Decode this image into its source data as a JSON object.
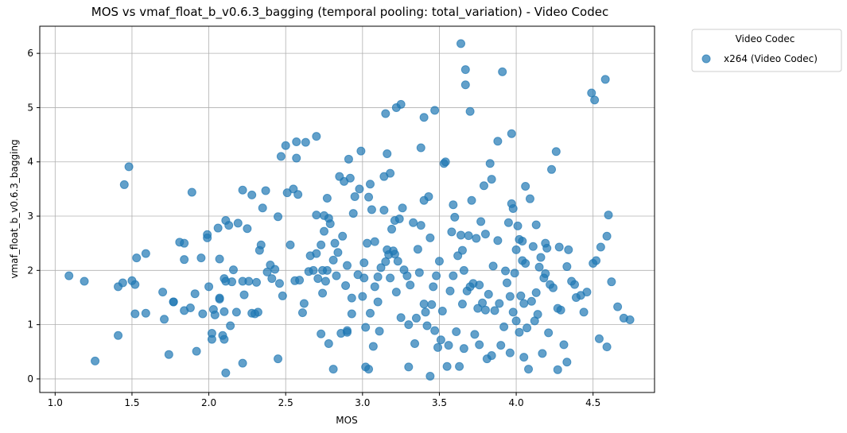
{
  "chart_data": {
    "type": "scatter",
    "title": "MOS vs vmaf_float_b_v0.6.3_bagging (temporal pooling: total_variation) - Video Codec",
    "xlabel": "MOS",
    "ylabel": "vmaf_float_b_v0.6.3_bagging",
    "xlim": [
      0.9,
      4.9
    ],
    "ylim": [
      -0.25,
      6.5
    ],
    "xticks": [
      "1.0",
      "1.5",
      "2.0",
      "2.5",
      "3.0",
      "3.5",
      "4.0",
      "4.5"
    ],
    "yticks": [
      "0",
      "1",
      "2",
      "3",
      "4",
      "5",
      "6"
    ],
    "grid": true,
    "legend": {
      "title": "Video Codec",
      "placement": "outside-top-right"
    },
    "point_color": "#1f77b4",
    "point_alpha": 0.7,
    "series": [
      {
        "name": "x264 (Video Codec)",
        "points": [
          [
            1.09,
            1.9
          ],
          [
            1.19,
            1.8
          ],
          [
            1.26,
            0.33
          ],
          [
            1.41,
            0.8
          ],
          [
            1.41,
            1.7
          ],
          [
            1.44,
            1.77
          ],
          [
            1.45,
            3.58
          ],
          [
            1.48,
            3.91
          ],
          [
            1.5,
            1.81
          ],
          [
            1.52,
            1.74
          ],
          [
            1.52,
            1.2
          ],
          [
            1.53,
            2.23
          ],
          [
            1.59,
            2.31
          ],
          [
            1.59,
            1.21
          ],
          [
            1.7,
            1.6
          ],
          [
            1.71,
            1.1
          ],
          [
            1.74,
            0.45
          ],
          [
            1.77,
            1.42
          ],
          [
            1.77,
            1.42
          ],
          [
            1.81,
            2.52
          ],
          [
            1.84,
            2.5
          ],
          [
            1.84,
            1.26
          ],
          [
            1.84,
            2.2
          ],
          [
            1.88,
            1.31
          ],
          [
            1.89,
            3.44
          ],
          [
            1.91,
            1.57
          ],
          [
            1.92,
            0.51
          ],
          [
            1.95,
            2.23
          ],
          [
            1.96,
            1.2
          ],
          [
            1.99,
            2.6
          ],
          [
            1.99,
            2.66
          ],
          [
            2.0,
            1.7
          ],
          [
            2.02,
            0.73
          ],
          [
            2.02,
            0.84
          ],
          [
            2.03,
            1.28
          ],
          [
            2.04,
            1.18
          ],
          [
            2.06,
            2.78
          ],
          [
            2.07,
            2.21
          ],
          [
            2.07,
            1.49
          ],
          [
            2.07,
            1.47
          ],
          [
            2.09,
            0.8
          ],
          [
            2.1,
            1.24
          ],
          [
            2.1,
            1.85
          ],
          [
            2.1,
            0.73
          ],
          [
            2.11,
            2.92
          ],
          [
            2.11,
            0.11
          ],
          [
            2.11,
            1.8
          ],
          [
            2.13,
            2.83
          ],
          [
            2.14,
            0.98
          ],
          [
            2.16,
            2.01
          ],
          [
            2.15,
            1.79
          ],
          [
            2.18,
            1.23
          ],
          [
            2.19,
            2.87
          ],
          [
            2.22,
            3.48
          ],
          [
            2.22,
            1.8
          ],
          [
            2.22,
            0.29
          ],
          [
            2.23,
            1.55
          ],
          [
            2.25,
            2.77
          ],
          [
            2.26,
            1.8
          ],
          [
            2.28,
            1.21
          ],
          [
            2.28,
            3.39
          ],
          [
            2.3,
            1.2
          ],
          [
            2.31,
            1.78
          ],
          [
            2.32,
            1.23
          ],
          [
            2.33,
            2.37
          ],
          [
            2.34,
            2.47
          ],
          [
            2.35,
            3.15
          ],
          [
            2.37,
            3.47
          ],
          [
            2.38,
            1.97
          ],
          [
            2.4,
            2.1
          ],
          [
            2.41,
            1.85
          ],
          [
            2.43,
            2.02
          ],
          [
            2.45,
            0.37
          ],
          [
            2.45,
            2.99
          ],
          [
            2.46,
            1.76
          ],
          [
            2.47,
            4.1
          ],
          [
            2.48,
            1.53
          ],
          [
            2.5,
            4.3
          ],
          [
            2.51,
            3.43
          ],
          [
            2.53,
            2.47
          ],
          [
            2.55,
            3.5
          ],
          [
            2.56,
            1.81
          ],
          [
            2.57,
            4.37
          ],
          [
            2.57,
            4.07
          ],
          [
            2.58,
            3.4
          ],
          [
            2.59,
            1.82
          ],
          [
            2.61,
            1.22
          ],
          [
            2.62,
            1.39
          ],
          [
            2.63,
            4.36
          ],
          [
            2.65,
            1.98
          ],
          [
            2.66,
            2.27
          ],
          [
            2.68,
            2.0
          ],
          [
            2.7,
            4.47
          ],
          [
            2.7,
            3.02
          ],
          [
            2.7,
            2.31
          ],
          [
            2.71,
            1.85
          ],
          [
            2.73,
            0.83
          ],
          [
            2.73,
            2.47
          ],
          [
            2.74,
            1.58
          ],
          [
            2.74,
            2.0
          ],
          [
            2.75,
            2.72
          ],
          [
            2.75,
            3.01
          ],
          [
            2.76,
            1.8
          ],
          [
            2.77,
            2.0
          ],
          [
            2.77,
            3.33
          ],
          [
            2.78,
            2.96
          ],
          [
            2.78,
            0.65
          ],
          [
            2.79,
            2.86
          ],
          [
            2.81,
            2.19
          ],
          [
            2.81,
            0.18
          ],
          [
            2.82,
            2.5
          ],
          [
            2.83,
            1.9
          ],
          [
            2.84,
            2.33
          ],
          [
            2.85,
            3.73
          ],
          [
            2.86,
            0.84
          ],
          [
            2.87,
            2.63
          ],
          [
            2.88,
            3.64
          ],
          [
            2.89,
            1.72
          ],
          [
            2.9,
            2.09
          ],
          [
            2.9,
            0.89
          ],
          [
            2.9,
            0.86
          ],
          [
            2.91,
            4.05
          ],
          [
            2.92,
            3.7
          ],
          [
            2.93,
            1.49
          ],
          [
            2.93,
            1.2
          ],
          [
            2.94,
            3.05
          ],
          [
            2.95,
            3.36
          ],
          [
            2.97,
            1.92
          ],
          [
            2.98,
            3.5
          ],
          [
            2.99,
            4.2
          ],
          [
            3.0,
            1.52
          ],
          [
            3.01,
            2.14
          ],
          [
            3.01,
            1.86
          ],
          [
            3.02,
            0.95
          ],
          [
            3.02,
            0.22
          ],
          [
            3.03,
            2.5
          ],
          [
            3.04,
            0.18
          ],
          [
            3.04,
            3.35
          ],
          [
            3.05,
            3.59
          ],
          [
            3.05,
            1.21
          ],
          [
            3.06,
            3.12
          ],
          [
            3.07,
            0.6
          ],
          [
            3.08,
            1.7
          ],
          [
            3.08,
            2.53
          ],
          [
            3.1,
            1.88
          ],
          [
            3.1,
            1.42
          ],
          [
            3.11,
            0.88
          ],
          [
            3.12,
            2.05
          ],
          [
            3.14,
            3.11
          ],
          [
            3.14,
            3.73
          ],
          [
            3.15,
            2.16
          ],
          [
            3.15,
            4.89
          ],
          [
            3.16,
            4.15
          ],
          [
            3.16,
            2.38
          ],
          [
            3.17,
            2.29
          ],
          [
            3.18,
            3.79
          ],
          [
            3.18,
            1.86
          ],
          [
            3.19,
            2.76
          ],
          [
            3.2,
            2.36
          ],
          [
            3.21,
            2.92
          ],
          [
            3.21,
            2.3
          ],
          [
            3.22,
            5.0
          ],
          [
            3.22,
            1.6
          ],
          [
            3.23,
            2.17
          ],
          [
            3.24,
            2.95
          ],
          [
            3.25,
            1.13
          ],
          [
            3.25,
            5.06
          ],
          [
            3.26,
            3.15
          ],
          [
            3.27,
            2.01
          ],
          [
            3.29,
            1.9
          ],
          [
            3.3,
            1.0
          ],
          [
            3.3,
            0.22
          ],
          [
            3.31,
            1.73
          ],
          [
            3.33,
            2.88
          ],
          [
            3.34,
            0.65
          ],
          [
            3.35,
            1.12
          ],
          [
            3.36,
            2.39
          ],
          [
            3.37,
            1.96
          ],
          [
            3.38,
            4.26
          ],
          [
            3.38,
            2.83
          ],
          [
            3.4,
            3.29
          ],
          [
            3.4,
            1.38
          ],
          [
            3.4,
            4.82
          ],
          [
            3.41,
            1.23
          ],
          [
            3.42,
            0.98
          ],
          [
            3.43,
            3.36
          ],
          [
            3.44,
            2.6
          ],
          [
            3.44,
            0.05
          ],
          [
            3.45,
            1.37
          ],
          [
            3.46,
            1.7
          ],
          [
            3.47,
            4.95
          ],
          [
            3.47,
            0.89
          ],
          [
            3.48,
            1.9
          ],
          [
            3.49,
            0.58
          ],
          [
            3.5,
            2.17
          ],
          [
            3.51,
            0.72
          ],
          [
            3.52,
            1.25
          ],
          [
            3.53,
            3.97
          ],
          [
            3.54,
            4.0
          ],
          [
            3.55,
            0.23
          ],
          [
            3.56,
            0.62
          ],
          [
            3.57,
            1.62
          ],
          [
            3.58,
            2.71
          ],
          [
            3.59,
            1.9
          ],
          [
            3.59,
            3.21
          ],
          [
            3.6,
            2.98
          ],
          [
            3.61,
            0.87
          ],
          [
            3.62,
            2.27
          ],
          [
            3.63,
            0.23
          ],
          [
            3.64,
            6.18
          ],
          [
            3.64,
            2.65
          ],
          [
            3.65,
            1.38
          ],
          [
            3.65,
            2.37
          ],
          [
            3.66,
            2.0
          ],
          [
            3.66,
            0.56
          ],
          [
            3.67,
            5.42
          ],
          [
            3.67,
            5.7
          ],
          [
            3.68,
            1.62
          ],
          [
            3.69,
            2.64
          ],
          [
            3.7,
            1.7
          ],
          [
            3.7,
            4.93
          ],
          [
            3.71,
            3.29
          ],
          [
            3.72,
            1.76
          ],
          [
            3.73,
            0.82
          ],
          [
            3.74,
            2.59
          ],
          [
            3.75,
            1.3
          ],
          [
            3.76,
            0.63
          ],
          [
            3.76,
            1.73
          ],
          [
            3.77,
            2.9
          ],
          [
            3.78,
            1.4
          ],
          [
            3.79,
            3.56
          ],
          [
            3.8,
            2.67
          ],
          [
            3.8,
            1.27
          ],
          [
            3.81,
            0.37
          ],
          [
            3.82,
            1.56
          ],
          [
            3.83,
            3.97
          ],
          [
            3.84,
            3.68
          ],
          [
            3.84,
            0.43
          ],
          [
            3.85,
            2.08
          ],
          [
            3.86,
            1.26
          ],
          [
            3.88,
            4.38
          ],
          [
            3.88,
            2.55
          ],
          [
            3.89,
            1.39
          ],
          [
            3.9,
            0.62
          ],
          [
            3.91,
            5.66
          ],
          [
            3.92,
            0.96
          ],
          [
            3.93,
            1.99
          ],
          [
            3.94,
            1.77
          ],
          [
            3.95,
            2.88
          ],
          [
            3.96,
            1.52
          ],
          [
            3.96,
            0.48
          ],
          [
            3.97,
            3.23
          ],
          [
            3.97,
            4.52
          ],
          [
            3.98,
            3.14
          ],
          [
            3.98,
            1.23
          ],
          [
            3.99,
            1.95
          ],
          [
            4.0,
            1.07
          ],
          [
            4.0,
            2.38
          ],
          [
            4.01,
            2.82
          ],
          [
            4.02,
            0.86
          ],
          [
            4.02,
            2.57
          ],
          [
            4.03,
            1.53
          ],
          [
            4.04,
            2.54
          ],
          [
            4.04,
            2.18
          ],
          [
            4.05,
            1.39
          ],
          [
            4.05,
            0.4
          ],
          [
            4.06,
            3.55
          ],
          [
            4.06,
            2.13
          ],
          [
            4.07,
            0.94
          ],
          [
            4.08,
            0.18
          ],
          [
            4.09,
            3.32
          ],
          [
            4.1,
            1.43
          ],
          [
            4.11,
            2.44
          ],
          [
            4.12,
            1.07
          ],
          [
            4.13,
            1.59
          ],
          [
            4.13,
            2.84
          ],
          [
            4.14,
            1.19
          ],
          [
            4.15,
            2.06
          ],
          [
            4.16,
            2.24
          ],
          [
            4.17,
            0.47
          ],
          [
            4.18,
            1.86
          ],
          [
            4.19,
            1.94
          ],
          [
            4.19,
            2.5
          ],
          [
            4.2,
            2.41
          ],
          [
            4.21,
            0.85
          ],
          [
            4.22,
            1.74
          ],
          [
            4.23,
            3.86
          ],
          [
            4.24,
            1.68
          ],
          [
            4.26,
            4.19
          ],
          [
            4.27,
            0.17
          ],
          [
            4.27,
            1.3
          ],
          [
            4.28,
            2.43
          ],
          [
            4.29,
            1.27
          ],
          [
            4.31,
            0.63
          ],
          [
            4.33,
            0.31
          ],
          [
            4.33,
            2.07
          ],
          [
            4.34,
            2.38
          ],
          [
            4.36,
            1.8
          ],
          [
            4.38,
            1.74
          ],
          [
            4.39,
            1.5
          ],
          [
            4.42,
            1.54
          ],
          [
            4.44,
            1.23
          ],
          [
            4.46,
            1.6
          ],
          [
            4.49,
            5.27
          ],
          [
            4.5,
            2.13
          ],
          [
            4.51,
            5.14
          ],
          [
            4.52,
            2.18
          ],
          [
            4.54,
            0.74
          ],
          [
            4.55,
            2.43
          ],
          [
            4.58,
            5.52
          ],
          [
            4.59,
            0.59
          ],
          [
            4.59,
            2.63
          ],
          [
            4.6,
            3.02
          ],
          [
            4.62,
            1.79
          ],
          [
            4.66,
            1.33
          ],
          [
            4.7,
            1.12
          ],
          [
            4.74,
            1.09
          ]
        ]
      }
    ]
  }
}
